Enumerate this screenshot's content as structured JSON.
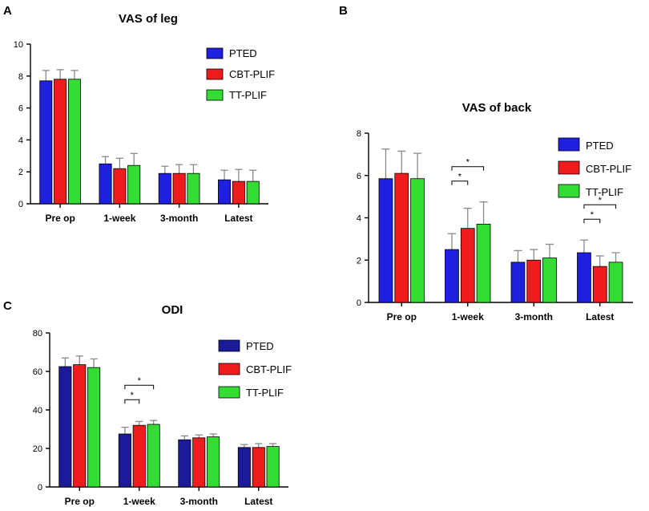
{
  "figure": {
    "panel_labels": [
      "A",
      "B",
      "C"
    ]
  },
  "chart_data": [
    {
      "panel": "A",
      "type": "bar",
      "title": "VAS of leg",
      "categories": [
        "Pre op",
        "1-week",
        "3-month",
        "Latest"
      ],
      "ylim": [
        0,
        10
      ],
      "yticks": [
        0,
        2,
        4,
        6,
        8,
        10
      ],
      "legend_position": "top-right",
      "series": [
        {
          "name": "PTED",
          "color": "#1f1fe0",
          "values": [
            7.7,
            2.5,
            1.9,
            1.5
          ],
          "errors": [
            0.65,
            0.45,
            0.45,
            0.6
          ]
        },
        {
          "name": "CBT-PLIF",
          "color": "#ee1c1c",
          "values": [
            7.8,
            2.2,
            1.9,
            1.4
          ],
          "errors": [
            0.6,
            0.65,
            0.55,
            0.75
          ]
        },
        {
          "name": "TT-PLIF",
          "color": "#33dd33",
          "values": [
            7.8,
            2.4,
            1.9,
            1.4
          ],
          "errors": [
            0.55,
            0.75,
            0.55,
            0.7
          ]
        }
      ],
      "significance": []
    },
    {
      "panel": "B",
      "type": "bar",
      "title": "VAS of back",
      "categories": [
        "Pre op",
        "1-week",
        "3-month",
        "Latest"
      ],
      "ylim": [
        0,
        8
      ],
      "yticks": [
        0,
        2,
        4,
        6,
        8
      ],
      "legend_position": "top-right",
      "series": [
        {
          "name": "PTED",
          "color": "#1f1fe0",
          "values": [
            5.85,
            2.5,
            1.9,
            2.35
          ],
          "errors": [
            1.4,
            0.75,
            0.55,
            0.6
          ]
        },
        {
          "name": "CBT-PLIF",
          "color": "#ee1c1c",
          "values": [
            6.1,
            3.5,
            2.0,
            1.7
          ],
          "errors": [
            1.05,
            0.95,
            0.5,
            0.5
          ]
        },
        {
          "name": "TT-PLIF",
          "color": "#33dd33",
          "values": [
            5.85,
            3.7,
            2.1,
            1.9
          ],
          "errors": [
            1.2,
            1.05,
            0.65,
            0.45
          ]
        }
      ],
      "significance": [
        {
          "category": 1,
          "from": 0,
          "to": 1,
          "label": "*"
        },
        {
          "category": 1,
          "from": 0,
          "to": 2,
          "label": "*"
        },
        {
          "category": 3,
          "from": 0,
          "to": 1,
          "label": "*"
        },
        {
          "category": 3,
          "from": 0,
          "to": 2,
          "label": "*"
        }
      ]
    },
    {
      "panel": "C",
      "type": "bar",
      "title": "ODI",
      "categories": [
        "Pre op",
        "1-week",
        "3-month",
        "Latest"
      ],
      "ylim": [
        0,
        80
      ],
      "yticks": [
        0,
        20,
        40,
        60,
        80
      ],
      "legend_position": "top-right",
      "series": [
        {
          "name": "PTED",
          "color": "#1a1a9a",
          "values": [
            62.5,
            27.5,
            24.5,
            20.5
          ],
          "errors": [
            4.5,
            3.5,
            2.0,
            1.5
          ]
        },
        {
          "name": "CBT-PLIF",
          "color": "#ee1c1c",
          "values": [
            63.5,
            32.0,
            25.5,
            20.5
          ],
          "errors": [
            4.5,
            2.0,
            1.5,
            2.0
          ]
        },
        {
          "name": "TT-PLIF",
          "color": "#33dd33",
          "values": [
            62.0,
            32.5,
            26.0,
            21.0
          ],
          "errors": [
            4.5,
            2.0,
            1.5,
            1.5
          ]
        }
      ],
      "significance": [
        {
          "category": 1,
          "from": 0,
          "to": 1,
          "label": "*"
        },
        {
          "category": 1,
          "from": 0,
          "to": 2,
          "label": "*"
        }
      ]
    }
  ]
}
